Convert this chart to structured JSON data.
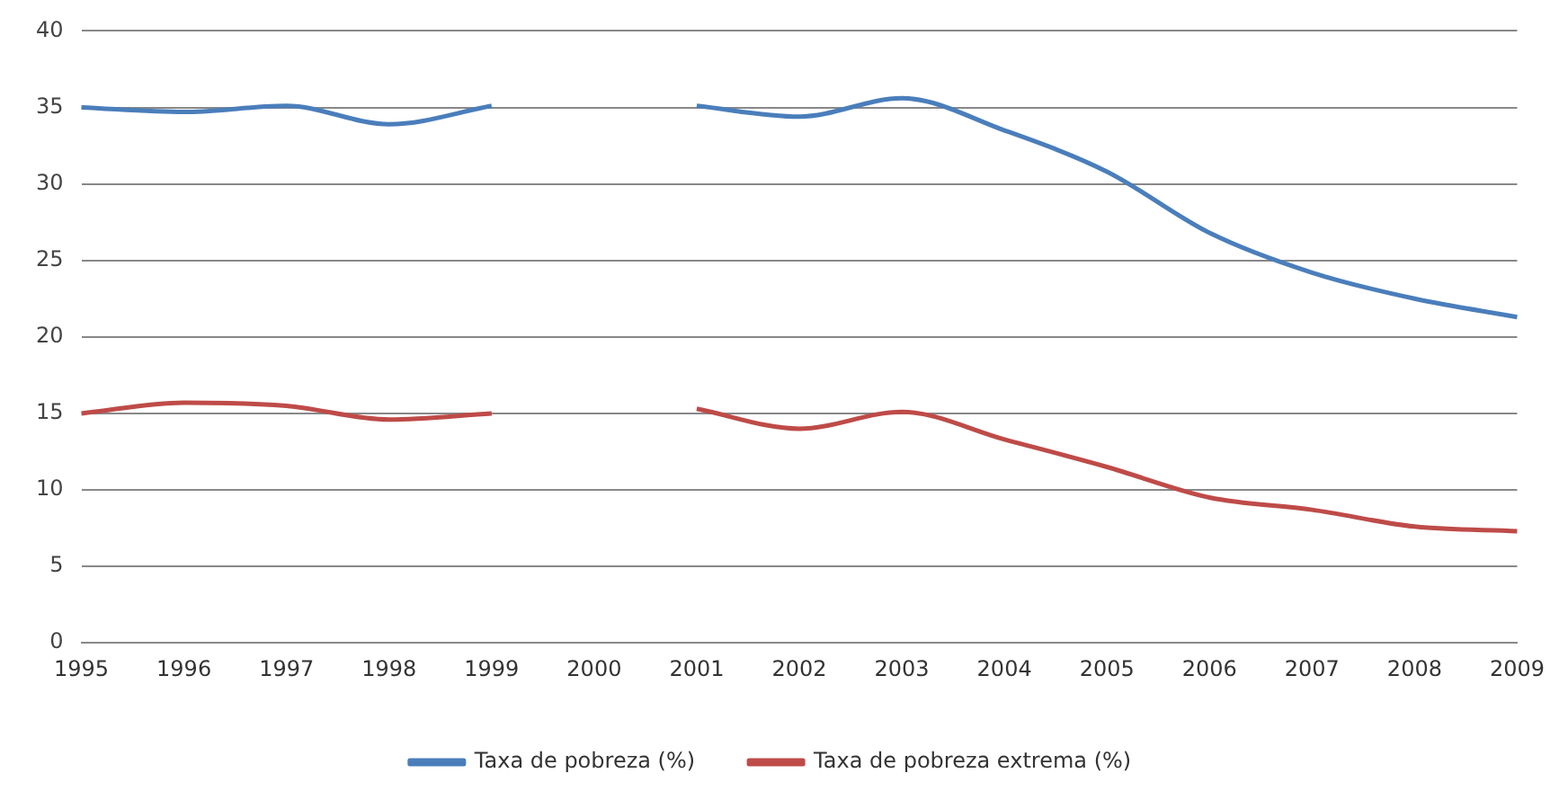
{
  "chart_data": {
    "type": "line",
    "categories": [
      "1995",
      "1996",
      "1997",
      "1998",
      "1999",
      "2000",
      "2001",
      "2002",
      "2003",
      "2004",
      "2005",
      "2006",
      "2007",
      "2008",
      "2009"
    ],
    "series": [
      {
        "name": "Taxa de pobreza (%)",
        "color": "#4a7ebb",
        "values": [
          35,
          34.7,
          35.1,
          33.9,
          35.1,
          null,
          35.1,
          34.4,
          35.6,
          33.5,
          30.8,
          26.8,
          24.2,
          22.5,
          21.3
        ]
      },
      {
        "name": "Taxa de pobreza extrema (%)",
        "color": "#be4b48",
        "values": [
          15,
          15.7,
          15.5,
          14.6,
          15,
          null,
          15.3,
          14,
          15.1,
          13.3,
          11.5,
          9.5,
          8.7,
          7.6,
          7.3
        ]
      }
    ],
    "ylim": [
      0,
      40
    ],
    "yticks": [
      0,
      5,
      10,
      15,
      20,
      25,
      30,
      35,
      40
    ],
    "grid": "y",
    "legend": "bottom",
    "marker": "none",
    "line_style": "solid"
  }
}
